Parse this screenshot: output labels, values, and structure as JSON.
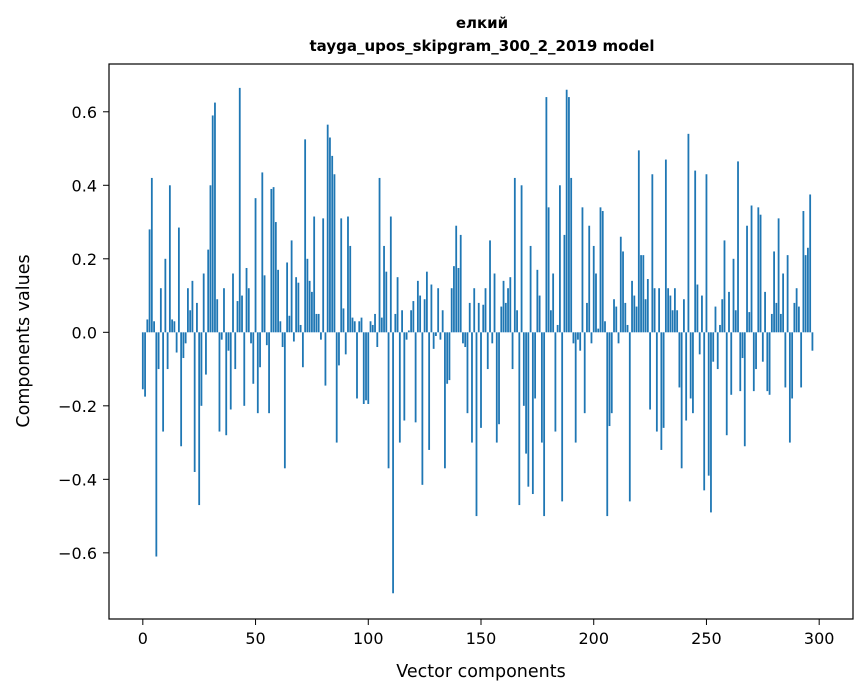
{
  "chart_data": {
    "type": "bar",
    "title": "елкий",
    "subtitle": "tayga_upos_skipgram_300_2_2019 model",
    "xlabel": "Vector components",
    "ylabel": "Components values",
    "xlim": [
      -15,
      315
    ],
    "ylim": [
      -0.78,
      0.73
    ],
    "xticks": [
      0,
      50,
      100,
      150,
      200,
      250,
      300
    ],
    "xtick_labels": [
      "0",
      "50",
      "100",
      "150",
      "200",
      "250",
      "300"
    ],
    "yticks": [
      -0.6,
      -0.4,
      -0.2,
      0.0,
      0.2,
      0.4,
      0.6
    ],
    "ytick_labels": [
      "−0.6",
      "−0.4",
      "−0.2",
      "0.0",
      "0.2",
      "0.4",
      "0.6"
    ],
    "grid": false,
    "bar_color": "#1f77b4",
    "values": [
      -0.155,
      -0.175,
      0.035,
      0.28,
      0.42,
      0.03,
      -0.61,
      -0.1,
      0.12,
      -0.27,
      0.2,
      -0.1,
      0.4,
      0.035,
      0.03,
      -0.055,
      0.285,
      -0.31,
      -0.07,
      -0.03,
      0.12,
      0.06,
      0.14,
      -0.38,
      0.08,
      -0.47,
      -0.2,
      0.16,
      -0.115,
      0.225,
      0.4,
      0.59,
      0.625,
      0.09,
      -0.27,
      -0.02,
      0.12,
      -0.28,
      -0.05,
      -0.21,
      0.16,
      -0.1,
      0.085,
      0.665,
      0.1,
      -0.2,
      0.175,
      0.12,
      -0.03,
      -0.14,
      0.365,
      -0.22,
      -0.095,
      0.435,
      0.155,
      -0.035,
      -0.22,
      0.39,
      0.395,
      0.3,
      0.17,
      0.03,
      -0.04,
      -0.37,
      0.19,
      0.045,
      0.25,
      -0.025,
      0.15,
      0.135,
      0.02,
      -0.095,
      0.525,
      0.2,
      0.14,
      0.11,
      0.315,
      0.05,
      0.05,
      -0.02,
      0.31,
      -0.145,
      0.565,
      0.53,
      0.48,
      0.43,
      -0.3,
      -0.09,
      0.31,
      0.065,
      -0.06,
      0.315,
      0.235,
      0.04,
      0.03,
      -0.18,
      0.03,
      0.04,
      -0.195,
      -0.185,
      -0.195,
      0.03,
      0.02,
      0.05,
      -0.04,
      0.42,
      0.04,
      0.235,
      0.165,
      -0.37,
      0.315,
      -0.71,
      0.05,
      0.15,
      -0.3,
      0.06,
      -0.24,
      -0.02,
      0.005,
      0.06,
      0.085,
      -0.245,
      0.14,
      0.1,
      -0.415,
      0.09,
      0.165,
      -0.32,
      0.13,
      -0.045,
      -0.01,
      0.12,
      -0.02,
      0.06,
      -0.37,
      -0.14,
      -0.13,
      0.12,
      0.18,
      0.29,
      0.175,
      0.265,
      -0.03,
      -0.04,
      -0.22,
      0.08,
      -0.3,
      0.12,
      -0.5,
      0.08,
      -0.26,
      0.075,
      0.12,
      -0.1,
      0.25,
      -0.03,
      0.16,
      -0.3,
      -0.25,
      0.07,
      0.14,
      0.08,
      0.12,
      0.15,
      -0.1,
      0.42,
      0.06,
      -0.47,
      0.4,
      -0.2,
      -0.33,
      -0.42,
      0.235,
      -0.44,
      -0.18,
      0.17,
      0.1,
      -0.3,
      -0.5,
      0.64,
      0.34,
      0.06,
      0.16,
      -0.27,
      0.02,
      0.4,
      -0.46,
      0.265,
      0.66,
      0.64,
      0.42,
      -0.03,
      -0.3,
      -0.02,
      -0.05,
      0.34,
      -0.22,
      0.08,
      0.29,
      -0.03,
      0.235,
      0.16,
      0.01,
      0.34,
      0.33,
      0.03,
      -0.5,
      -0.255,
      -0.22,
      0.09,
      0.07,
      -0.03,
      0.26,
      0.22,
      0.08,
      0.02,
      -0.46,
      0.14,
      0.1,
      0.07,
      0.495,
      0.21,
      0.21,
      0.09,
      0.145,
      -0.21,
      0.43,
      0.12,
      -0.27,
      0.12,
      -0.32,
      -0.26,
      0.47,
      0.12,
      0.1,
      0.06,
      0.12,
      0.06,
      -0.15,
      -0.37,
      0.09,
      -0.24,
      0.54,
      -0.18,
      -0.22,
      0.44,
      0.13,
      -0.06,
      0.1,
      -0.43,
      0.43,
      -0.39,
      -0.49,
      -0.08,
      0.07,
      -0.1,
      0.02,
      0.09,
      0.25,
      -0.28,
      0.11,
      -0.17,
      0.2,
      0.06,
      0.465,
      -0.16,
      -0.07,
      -0.31,
      0.29,
      0.055,
      0.345,
      -0.16,
      -0.1,
      0.34,
      0.32,
      -0.08,
      0.11,
      -0.16,
      -0.17,
      0.05,
      0.22,
      0.08,
      0.31,
      0.05,
      0.16,
      -0.15,
      0.21,
      -0.3,
      -0.18,
      0.08,
      0.12,
      0.07,
      -0.15,
      0.33,
      0.21,
      0.23,
      0.375,
      -0.05
    ]
  }
}
